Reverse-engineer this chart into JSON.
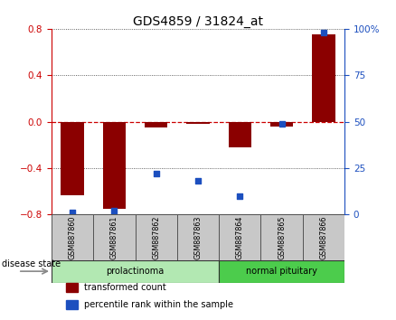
{
  "title": "GDS4859 / 31824_at",
  "samples": [
    "GSM887860",
    "GSM887861",
    "GSM887862",
    "GSM887863",
    "GSM887864",
    "GSM887865",
    "GSM887866"
  ],
  "transformed_count": [
    -0.63,
    -0.75,
    -0.05,
    -0.02,
    -0.22,
    -0.04,
    0.75
  ],
  "percentile_rank": [
    1,
    2,
    22,
    18,
    10,
    49,
    98
  ],
  "ylim_left": [
    -0.8,
    0.8
  ],
  "ylim_right": [
    0,
    100
  ],
  "yticks_left": [
    -0.8,
    -0.4,
    0,
    0.4,
    0.8
  ],
  "yticks_right": [
    0,
    25,
    50,
    75,
    100
  ],
  "bar_color": "#8B0000",
  "dot_color": "#1C4FBF",
  "zero_line_color": "#CC0000",
  "grid_color": "#000000",
  "disease_groups": [
    {
      "label": "prolactinoma",
      "start": 0,
      "end": 3,
      "color": "#b2e8b2"
    },
    {
      "label": "normal pituitary",
      "start": 4,
      "end": 6,
      "color": "#4ccc4c"
    }
  ],
  "disease_label": "disease state",
  "legend_items": [
    {
      "color": "#8B0000",
      "label": "transformed count"
    },
    {
      "color": "#1C4FBF",
      "label": "percentile rank within the sample"
    }
  ],
  "background_color": "#ffffff",
  "plot_bg_color": "#ffffff",
  "cell_color": "#c8c8c8",
  "cell_border_color": "#555555"
}
